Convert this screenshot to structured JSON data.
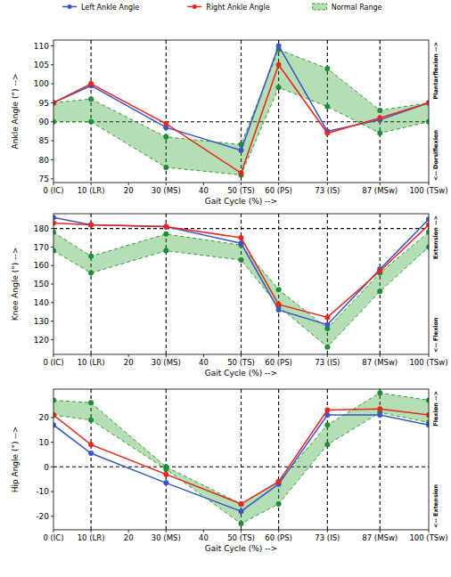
{
  "chart_data": [
    {
      "type": "line",
      "y_label": "Ankle Angle (°) -->",
      "x_label": "Gait Cycle (%) -->",
      "annotations": [
        "Plantarflexion -->",
        "<-- Dorsiflexion"
      ],
      "legend": "top",
      "x": [
        0,
        10,
        30,
        50,
        60,
        73,
        87,
        100
      ],
      "xlim": [
        0,
        100
      ],
      "xticks": [
        {
          "value": 0,
          "label": "0 (IC)"
        },
        {
          "value": 10,
          "label": "10 (LR)"
        },
        20,
        {
          "value": 30,
          "label": "30 (MS)"
        },
        40,
        {
          "value": 50,
          "label": "50 (TS)"
        },
        {
          "value": 60,
          "label": "60 (PS)"
        },
        {
          "value": 73,
          "label": "73 (IS)"
        },
        {
          "value": 87,
          "label": "87 (MSw)"
        },
        {
          "value": 100,
          "label": "100 (TSw)"
        }
      ],
      "ylim": [
        74,
        111.5
      ],
      "yticks": [
        75,
        80,
        85,
        90,
        95,
        100,
        105,
        110
      ],
      "reference_line": 90,
      "phase_lines": [
        10,
        30,
        50,
        60,
        73,
        87
      ],
      "series": [
        {
          "name": "Left Ankle Angle",
          "color": "#3a55c8",
          "marker": "circle",
          "values": [
            95,
            99.5,
            88.5,
            82.5,
            110,
            87.5,
            90.5,
            95
          ]
        },
        {
          "name": "Right Ankle Angle",
          "color": "#e8271e",
          "marker": "circle",
          "values": [
            95,
            100,
            89.5,
            76.5,
            105,
            87,
            91,
            95
          ]
        },
        {
          "name": "Normal Range",
          "type": "band",
          "color": "#2ca02c",
          "marker": "circle",
          "line_style": "dashed",
          "upper": [
            95,
            96,
            86,
            84,
            109,
            104,
            93,
            95
          ],
          "lower": [
            90,
            90,
            78,
            76,
            99,
            94,
            87,
            90
          ]
        }
      ]
    },
    {
      "type": "line",
      "y_label": "Knee Angle (°) -->",
      "x_label": "Gait Cycle (%) -->",
      "annotations": [
        "Extension -->",
        "<-- Flexion"
      ],
      "x": [
        0,
        10,
        30,
        50,
        60,
        73,
        87,
        100
      ],
      "xlim": [
        0,
        100
      ],
      "xticks": [
        {
          "value": 0,
          "label": "0 (IC)"
        },
        {
          "value": 10,
          "label": "10 (LR)"
        },
        20,
        {
          "value": 30,
          "label": "30 (MS)"
        },
        40,
        {
          "value": 50,
          "label": "50 (TS)"
        },
        {
          "value": 60,
          "label": "60 (PS)"
        },
        {
          "value": 73,
          "label": "73 (IS)"
        },
        {
          "value": 87,
          "label": "87 (MSw)"
        },
        {
          "value": 100,
          "label": "100 (TSw)"
        }
      ],
      "ylim": [
        112,
        188
      ],
      "yticks": [
        120,
        130,
        140,
        150,
        160,
        170,
        180
      ],
      "reference_line": 180,
      "phase_lines": [
        10,
        30,
        50,
        60,
        73,
        87
      ],
      "series": [
        {
          "color": "#3a55c8",
          "marker": "circle",
          "values": [
            186,
            182,
            181,
            172,
            136,
            128,
            158,
            185
          ]
        },
        {
          "color": "#e8271e",
          "marker": "circle",
          "values": [
            183,
            182,
            181,
            175,
            139,
            132,
            157,
            182
          ]
        },
        {
          "type": "band",
          "color": "#2ca02c",
          "marker": "circle",
          "line_style": "dashed",
          "upper": [
            178,
            165,
            177,
            171,
            147,
            126,
            156,
            178
          ],
          "lower": [
            168,
            156,
            168,
            163,
            138,
            116,
            146,
            170
          ]
        }
      ]
    },
    {
      "type": "line",
      "y_label": "Hip Angle (°) -->",
      "x_label": "Gait Cycle (%) -->",
      "annotations": [
        "Flexion -->",
        "<-- Extension"
      ],
      "x": [
        0,
        10,
        30,
        50,
        60,
        73,
        87,
        100
      ],
      "xlim": [
        0,
        100
      ],
      "xticks": [
        {
          "value": 0,
          "label": "0 (IC)"
        },
        {
          "value": 10,
          "label": "10 (LR)"
        },
        20,
        {
          "value": 30,
          "label": "30 (MS)"
        },
        40,
        {
          "value": 50,
          "label": "50 (TS)"
        },
        {
          "value": 60,
          "label": "60 (PS)"
        },
        {
          "value": 73,
          "label": "73 (IS)"
        },
        {
          "value": 87,
          "label": "87 (MSw)"
        },
        {
          "value": 100,
          "label": "100 (TSw)"
        }
      ],
      "ylim": [
        -25.5,
        31.5
      ],
      "yticks": [
        -20,
        -10,
        0,
        10,
        20
      ],
      "reference_line": 0,
      "phase_lines": [
        10,
        30,
        50,
        60,
        73,
        87
      ],
      "series": [
        {
          "color": "#3a55c8",
          "marker": "circle",
          "values": [
            17,
            5.5,
            -6.5,
            -18,
            -7,
            21,
            21,
            17
          ]
        },
        {
          "color": "#e8271e",
          "marker": "circle",
          "values": [
            21,
            9,
            -3,
            -15,
            -6,
            23,
            23.5,
            21
          ]
        },
        {
          "type": "band",
          "color": "#2ca02c",
          "marker": "circle",
          "line_style": "dashed",
          "upper": [
            27,
            26,
            0,
            -15,
            -6,
            17,
            30,
            27
          ],
          "lower": [
            21,
            19,
            -1,
            -23,
            -15,
            9,
            22,
            18
          ]
        }
      ]
    }
  ]
}
